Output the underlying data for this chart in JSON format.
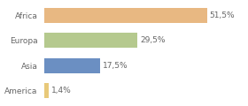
{
  "categories": [
    "America",
    "Asia",
    "Europa",
    "Africa"
  ],
  "values": [
    1.4,
    17.5,
    29.5,
    51.5
  ],
  "bar_colors": [
    "#e8c97a",
    "#6b8fc2",
    "#b5c98e",
    "#e8b882"
  ],
  "labels": [
    "1,4%",
    "17,5%",
    "29,5%",
    "51,5%"
  ],
  "background_color": "#ffffff",
  "xlim": [
    0,
    63
  ],
  "bar_height": 0.6,
  "label_fontsize": 6.5,
  "tick_fontsize": 6.5,
  "label_color": "#666666",
  "tick_color": "#666666"
}
